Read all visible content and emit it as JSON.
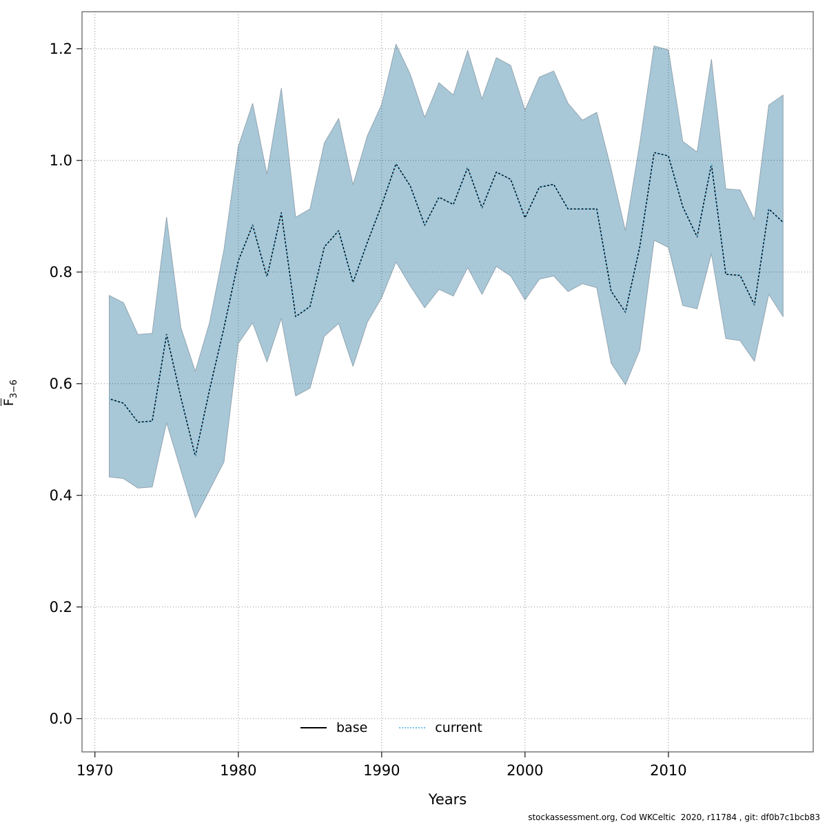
{
  "chart_data": {
    "type": "area",
    "title": "",
    "xlabel": "Years",
    "ylabel": "F-bar ages 3-6",
    "ylabel_main": "F",
    "ylabel_sub": "3−6",
    "x": [
      1971,
      1972,
      1973,
      1974,
      1975,
      1976,
      1977,
      1978,
      1979,
      1980,
      1981,
      1982,
      1983,
      1984,
      1985,
      1986,
      1987,
      1988,
      1989,
      1990,
      1991,
      1992,
      1993,
      1994,
      1995,
      1996,
      1997,
      1998,
      1999,
      2000,
      2001,
      2002,
      2003,
      2004,
      2005,
      2006,
      2007,
      2008,
      2009,
      2010,
      2011,
      2012,
      2013,
      2014,
      2015,
      2016,
      2017,
      2018
    ],
    "series": [
      {
        "name": "base",
        "style": "solid-black",
        "values": [
          0.573,
          0.565,
          0.531,
          0.533,
          0.688,
          0.575,
          0.47,
          0.59,
          0.7,
          0.82,
          0.884,
          0.791,
          0.906,
          0.72,
          0.738,
          0.845,
          0.874,
          0.781,
          0.853,
          0.92,
          0.994,
          0.954,
          0.884,
          0.934,
          0.921,
          0.987,
          0.915,
          0.979,
          0.966,
          0.897,
          0.952,
          0.957,
          0.913,
          0.913,
          0.913,
          0.766,
          0.728,
          0.845,
          1.014,
          1.008,
          0.917,
          0.863,
          0.993,
          0.796,
          0.794,
          0.741,
          0.913,
          0.889
        ]
      },
      {
        "name": "current",
        "style": "dotted-lightblue",
        "values": [
          0.573,
          0.565,
          0.531,
          0.533,
          0.688,
          0.575,
          0.47,
          0.59,
          0.7,
          0.82,
          0.884,
          0.791,
          0.906,
          0.72,
          0.738,
          0.845,
          0.874,
          0.781,
          0.853,
          0.92,
          0.994,
          0.954,
          0.884,
          0.934,
          0.921,
          0.987,
          0.915,
          0.979,
          0.966,
          0.897,
          0.952,
          0.957,
          0.913,
          0.913,
          0.913,
          0.766,
          0.728,
          0.845,
          1.014,
          1.008,
          0.917,
          0.863,
          0.993,
          0.796,
          0.794,
          0.741,
          0.913,
          0.889
        ]
      }
    ],
    "band": {
      "name": "confidence-interval",
      "lower": [
        0.433,
        0.43,
        0.413,
        0.415,
        0.53,
        0.445,
        0.36,
        0.41,
        0.46,
        0.672,
        0.709,
        0.639,
        0.717,
        0.578,
        0.592,
        0.685,
        0.708,
        0.631,
        0.71,
        0.754,
        0.818,
        0.775,
        0.736,
        0.769,
        0.757,
        0.808,
        0.76,
        0.81,
        0.793,
        0.75,
        0.787,
        0.793,
        0.765,
        0.779,
        0.772,
        0.637,
        0.598,
        0.66,
        0.857,
        0.844,
        0.74,
        0.734,
        0.833,
        0.681,
        0.677,
        0.64,
        0.76,
        0.72
      ],
      "upper": [
        0.758,
        0.745,
        0.688,
        0.69,
        0.898,
        0.7,
        0.622,
        0.71,
        0.84,
        1.025,
        1.102,
        0.975,
        1.129,
        0.898,
        0.913,
        1.031,
        1.075,
        0.956,
        1.044,
        1.1,
        1.208,
        1.154,
        1.077,
        1.139,
        1.117,
        1.197,
        1.11,
        1.184,
        1.17,
        1.09,
        1.149,
        1.16,
        1.102,
        1.072,
        1.086,
        0.985,
        0.874,
        1.03,
        1.205,
        1.198,
        1.034,
        1.015,
        1.181,
        0.949,
        0.947,
        0.894,
        1.099,
        1.117
      ]
    },
    "xticks": [
      1970,
      1980,
      1990,
      2000,
      2010
    ],
    "xtick_labels": [
      "1970",
      "1980",
      "1990",
      "2000",
      "2010"
    ],
    "ytick_values": [
      0.0,
      0.2,
      0.4,
      0.6,
      0.8,
      1.0,
      1.2
    ],
    "ytick_labels": [
      "0.0",
      "0.2",
      "0.4",
      "0.6",
      "0.8",
      "1.0",
      "1.2"
    ],
    "xlim": [
      1969.1,
      2020.1
    ],
    "ylim": [
      -0.0596,
      1.2663
    ],
    "grid": "dotted",
    "legend_position": "bottom-center",
    "colors": {
      "band": "#a8c8d8",
      "band_edge": "#93a5b1",
      "base_line": "#000000",
      "current_line": "#7ec8ec",
      "grid": "#000000",
      "spine": "#7a7a7a",
      "text": "#000000"
    }
  },
  "legend": {
    "items": [
      {
        "label": "base"
      },
      {
        "label": "current"
      }
    ]
  },
  "footer": {
    "text": "stockassessment.org, Cod WKCeltic  2020, r11784 , git: df0b7c1bcb83"
  }
}
